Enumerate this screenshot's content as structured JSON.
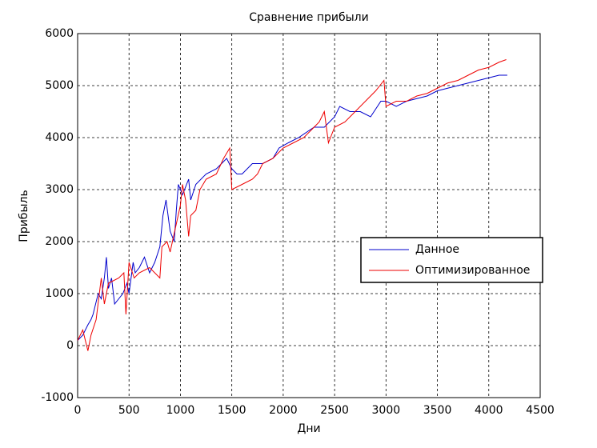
{
  "chart_data": {
    "type": "line",
    "title": "Сравнение прибыли",
    "xlabel": "Дни",
    "ylabel": "Прибыль",
    "xlim": [
      0,
      4500
    ],
    "xticks": [
      0,
      500,
      1000,
      1500,
      2000,
      2500,
      3000,
      3500,
      4000,
      4500
    ],
    "ylim": [
      -1000,
      6000
    ],
    "yticks": [
      -1000,
      0,
      1000,
      2000,
      3000,
      4000,
      5000,
      6000
    ],
    "grid": true,
    "legend": "east",
    "series": [
      {
        "name": "Данное",
        "color": "#0000cc",
        "x": [
          0,
          50,
          100,
          130,
          150,
          200,
          230,
          260,
          280,
          300,
          330,
          360,
          400,
          440,
          480,
          500,
          540,
          560,
          600,
          650,
          700,
          750,
          800,
          830,
          860,
          900,
          940,
          960,
          980,
          1020,
          1080,
          1100,
          1150,
          1250,
          1350,
          1400,
          1450,
          1500,
          1550,
          1600,
          1700,
          1800,
          1900,
          1960,
          2050,
          2150,
          2300,
          2400,
          2500,
          2550,
          2650,
          2750,
          2850,
          2950,
          3000,
          3100,
          3200,
          3300,
          3400,
          3500,
          3600,
          3700,
          3800,
          3900,
          4000,
          4100,
          4180
        ],
        "values": [
          100,
          200,
          400,
          500,
          600,
          1000,
          900,
          1300,
          1700,
          1100,
          1300,
          800,
          900,
          1000,
          1200,
          1000,
          1600,
          1400,
          1500,
          1700,
          1400,
          1600,
          1900,
          2500,
          2800,
          2200,
          2000,
          2600,
          3100,
          2900,
          3200,
          2800,
          3100,
          3300,
          3400,
          3500,
          3600,
          3400,
          3300,
          3300,
          3500,
          3500,
          3600,
          3800,
          3900,
          4000,
          4200,
          4200,
          4400,
          4600,
          4500,
          4500,
          4400,
          4700,
          4700,
          4600,
          4700,
          4750,
          4800,
          4900,
          4950,
          5000,
          5050,
          5100,
          5150,
          5200,
          5200
        ]
      },
      {
        "name": "Оптимизированное",
        "color": "#ee0000",
        "x": [
          0,
          50,
          100,
          130,
          180,
          230,
          260,
          300,
          400,
          450,
          470,
          500,
          550,
          600,
          700,
          800,
          820,
          870,
          900,
          1000,
          1020,
          1050,
          1080,
          1100,
          1150,
          1170,
          1190,
          1250,
          1350,
          1420,
          1480,
          1500,
          1600,
          1700,
          1750,
          1800,
          1900,
          2000,
          2100,
          2200,
          2300,
          2350,
          2400,
          2440,
          2500,
          2600,
          2700,
          2800,
          2900,
          2980,
          3000,
          3100,
          3200,
          3300,
          3400,
          3500,
          3600,
          3700,
          3800,
          3900,
          4000,
          4100,
          4170
        ],
        "values": [
          100,
          300,
          -100,
          200,
          500,
          1300,
          800,
          1200,
          1300,
          1400,
          600,
          1600,
          1300,
          1400,
          1500,
          1300,
          1900,
          2000,
          1800,
          2700,
          3100,
          2800,
          2100,
          2500,
          2600,
          2800,
          3000,
          3200,
          3300,
          3600,
          3800,
          3000,
          3100,
          3200,
          3300,
          3500,
          3600,
          3800,
          3900,
          4000,
          4200,
          4300,
          4500,
          3900,
          4200,
          4300,
          4500,
          4700,
          4900,
          5100,
          4600,
          4700,
          4700,
          4800,
          4850,
          4950,
          5050,
          5100,
          5200,
          5300,
          5350,
          5450,
          5500
        ]
      }
    ]
  }
}
